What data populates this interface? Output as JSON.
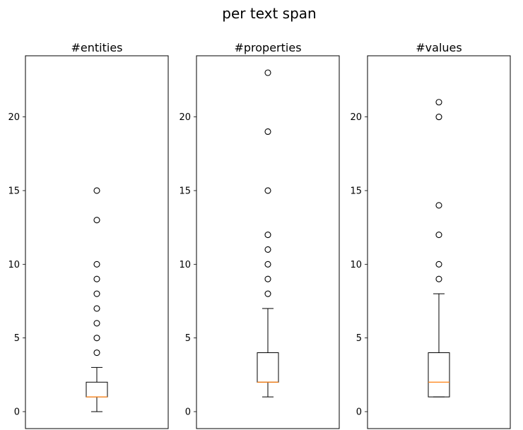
{
  "figure": {
    "title": "per text span"
  },
  "chart_data": [
    {
      "type": "boxplot",
      "title": "#entities",
      "ylim": [
        -1.15,
        24.15
      ],
      "yticks": [
        0,
        5,
        10,
        15,
        20
      ],
      "box": {
        "q1": 1,
        "median": 1,
        "q3": 2,
        "whisker_low": 0,
        "whisker_high": 3
      },
      "outliers": [
        4,
        5,
        6,
        7,
        8,
        9,
        10,
        13,
        15
      ]
    },
    {
      "type": "boxplot",
      "title": "#properties",
      "ylim": [
        -1.15,
        24.15
      ],
      "yticks": [
        0,
        5,
        10,
        15,
        20
      ],
      "box": {
        "q1": 2,
        "median": 2,
        "q3": 4,
        "whisker_low": 1,
        "whisker_high": 7
      },
      "outliers": [
        8,
        9,
        10,
        11,
        12,
        15,
        19,
        23
      ]
    },
    {
      "type": "boxplot",
      "title": "#values",
      "ylim": [
        -1.15,
        24.15
      ],
      "yticks": [
        0,
        5,
        10,
        15,
        20
      ],
      "box": {
        "q1": 1,
        "median": 2,
        "q3": 4,
        "whisker_low": 1,
        "whisker_high": 8
      },
      "outliers": [
        9,
        10,
        12,
        14,
        20,
        21
      ]
    }
  ],
  "colors": {
    "box": "#000000",
    "median": "#ff7f0e",
    "outlier_edge": "#000000"
  }
}
